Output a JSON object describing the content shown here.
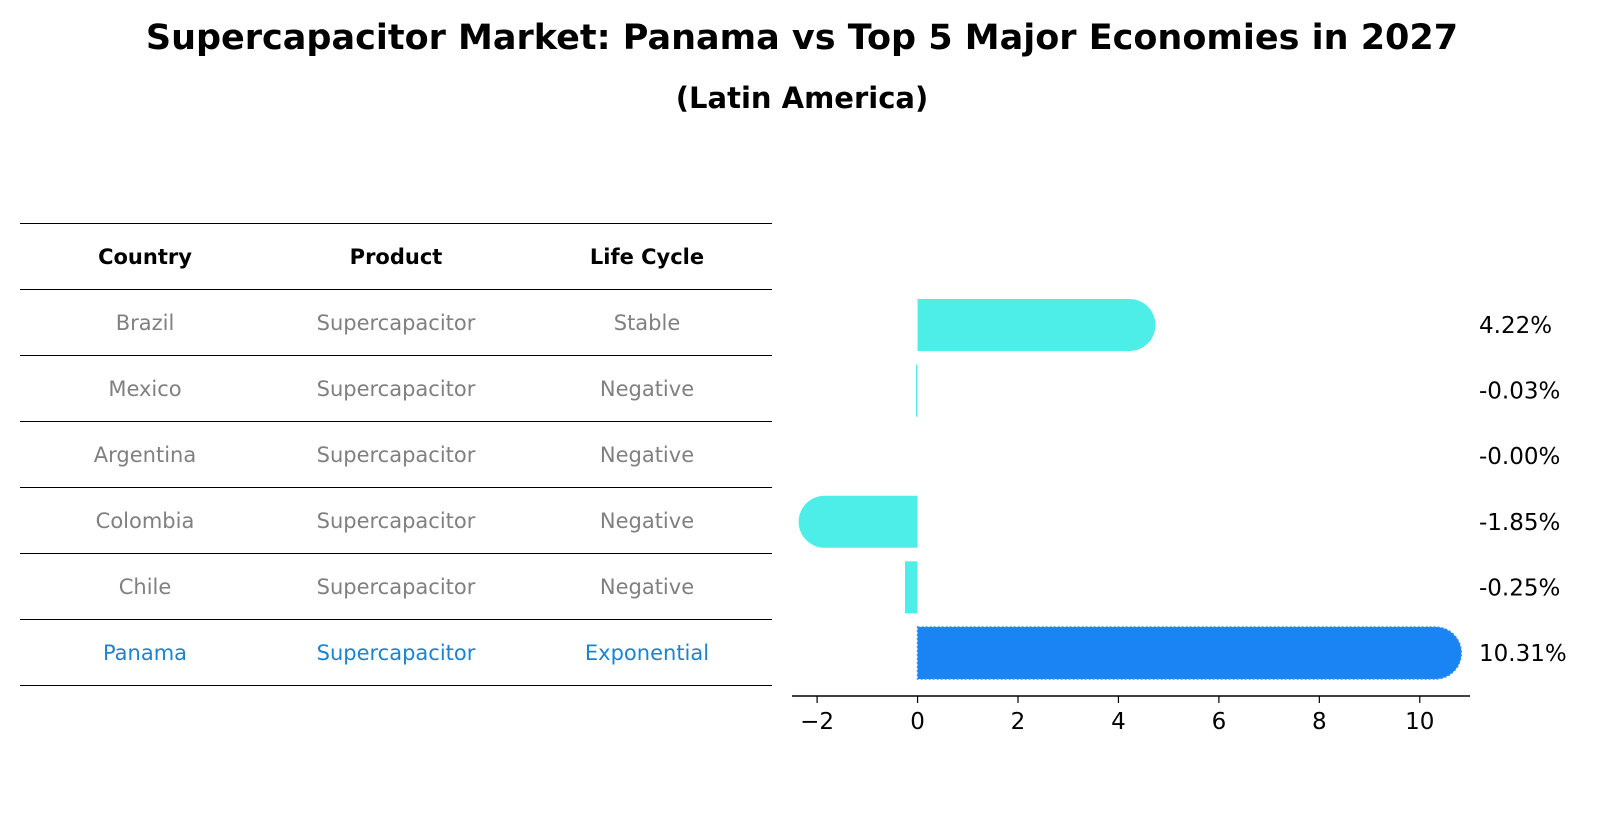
{
  "title": "Supercapacitor Market: Panama vs Top 5 Major Economies in 2027",
  "subtitle": "(Latin America)",
  "table": {
    "headers": [
      "Country",
      "Product",
      "Life Cycle"
    ],
    "rows": [
      {
        "country": "Brazil",
        "product": "Supercapacitor",
        "life_cycle": "Stable"
      },
      {
        "country": "Mexico",
        "product": "Supercapacitor",
        "life_cycle": "Negative"
      },
      {
        "country": "Argentina",
        "product": "Supercapacitor",
        "life_cycle": "Negative"
      },
      {
        "country": "Colombia",
        "product": "Supercapacitor",
        "life_cycle": "Negative"
      },
      {
        "country": "Chile",
        "product": "Supercapacitor",
        "life_cycle": "Negative"
      },
      {
        "country": "Panama",
        "product": "Supercapacitor",
        "life_cycle": "Exponential"
      }
    ],
    "highlight_color": "#1a84d4",
    "row_text_color": "#808080"
  },
  "chart_data": {
    "type": "bar",
    "orientation": "horizontal",
    "categories": [
      "Brazil",
      "Mexico",
      "Argentina",
      "Colombia",
      "Chile",
      "Panama"
    ],
    "values": [
      4.22,
      -0.03,
      -0.0,
      -1.85,
      -0.25,
      10.31
    ],
    "value_labels": [
      "4.22%",
      "-0.03%",
      "-0.00%",
      "-1.85%",
      "-0.25%",
      "10.31%"
    ],
    "xlim": [
      -2.5,
      11
    ],
    "xticks": [
      -2,
      0,
      2,
      4,
      6,
      8,
      10
    ],
    "xtick_labels": [
      "−2",
      "0",
      "2",
      "4",
      "6",
      "8",
      "10"
    ],
    "bar_color": "#4deee8",
    "highlight_color": "#1a84f4",
    "highlight_index": 5,
    "grid": false
  }
}
